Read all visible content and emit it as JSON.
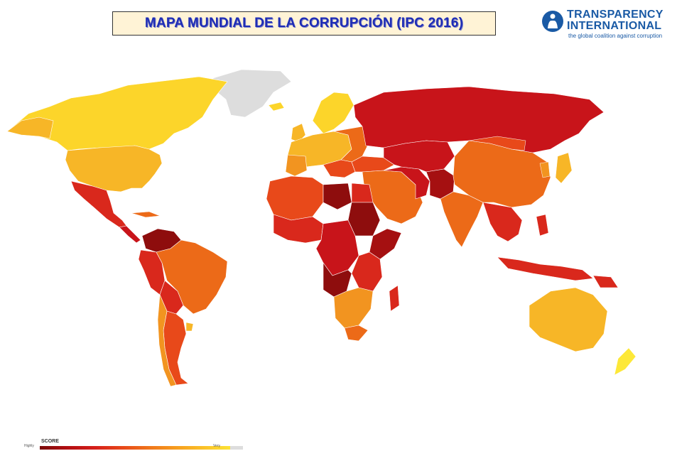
{
  "title": "MAPA MUNDIAL DE LA CORRUPCIÓN  (IPC 2016)",
  "logo": {
    "line1": "TRANSPARENCY",
    "line2": "INTERNATIONAL",
    "tagline": "the global coalition against corruption"
  },
  "legend": {
    "title": "SCORE",
    "low_label": "Highly",
    "high_label": "Very"
  },
  "colors": {
    "very_corrupt": "#8e0d0d",
    "corrupt": "#c8141a",
    "red": "#d9281c",
    "red_orange": "#e8491a",
    "orange": "#ec6a18",
    "light_orange": "#f29420",
    "amber": "#f7b627",
    "yellow": "#fcd52a",
    "bright_yellow": "#fde838",
    "no_data": "#dddddd",
    "title_blue": "#1f2db5",
    "logo_blue": "#1a5aa5"
  }
}
